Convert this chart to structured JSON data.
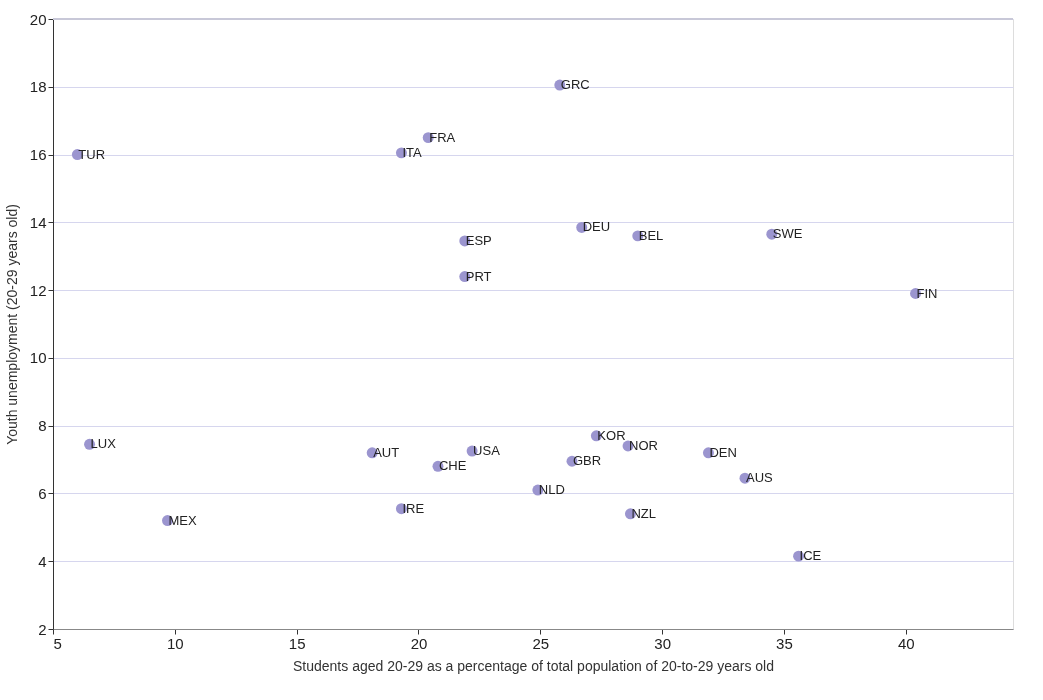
{
  "chart_data": {
    "type": "scatter",
    "xlabel": "Students aged 20-29 as a percentage of total population of 20-to-29 years old",
    "ylabel": "Youth unemployment (20-29 years old)",
    "x": [
      6.0,
      6.5,
      9.7,
      18.1,
      19.3,
      20.4,
      19.3,
      20.8,
      22.2,
      21.9,
      21.9,
      24.9,
      25.8,
      26.7,
      26.3,
      27.3,
      28.6,
      28.7,
      29.0,
      31.9,
      33.4,
      34.5,
      35.6,
      40.4
    ],
    "series": [
      {
        "color": "#9b95cf",
        "values": [
          16.0,
          7.45,
          5.2,
          7.2,
          16.05,
          16.5,
          5.55,
          6.8,
          7.25,
          13.45,
          12.4,
          6.1,
          18.05,
          13.85,
          6.95,
          7.7,
          7.4,
          5.4,
          13.6,
          7.2,
          6.45,
          13.65,
          4.15,
          11.9
        ],
        "value_labels": [
          "TUR",
          "LUX",
          "MEX",
          "AUT",
          "ITA",
          "FRA",
          "IRE",
          "CHE",
          "USA",
          "ESP",
          "PRT",
          "NLD",
          "GRC",
          "DEU",
          "GBR",
          "KOR",
          "NOR",
          "NZL",
          "BEL",
          "DEN",
          "AUS",
          "SWE",
          "ICE",
          "FIN"
        ]
      }
    ],
    "xlim": [
      5,
      44.4
    ],
    "xticks": [
      5,
      10,
      15,
      20,
      25,
      30,
      35,
      40
    ],
    "ylim": [
      2,
      20
    ],
    "yticks": [
      2,
      4,
      6,
      8,
      10,
      12,
      14,
      16,
      18,
      20
    ],
    "grid": "y",
    "marker": "circle"
  }
}
